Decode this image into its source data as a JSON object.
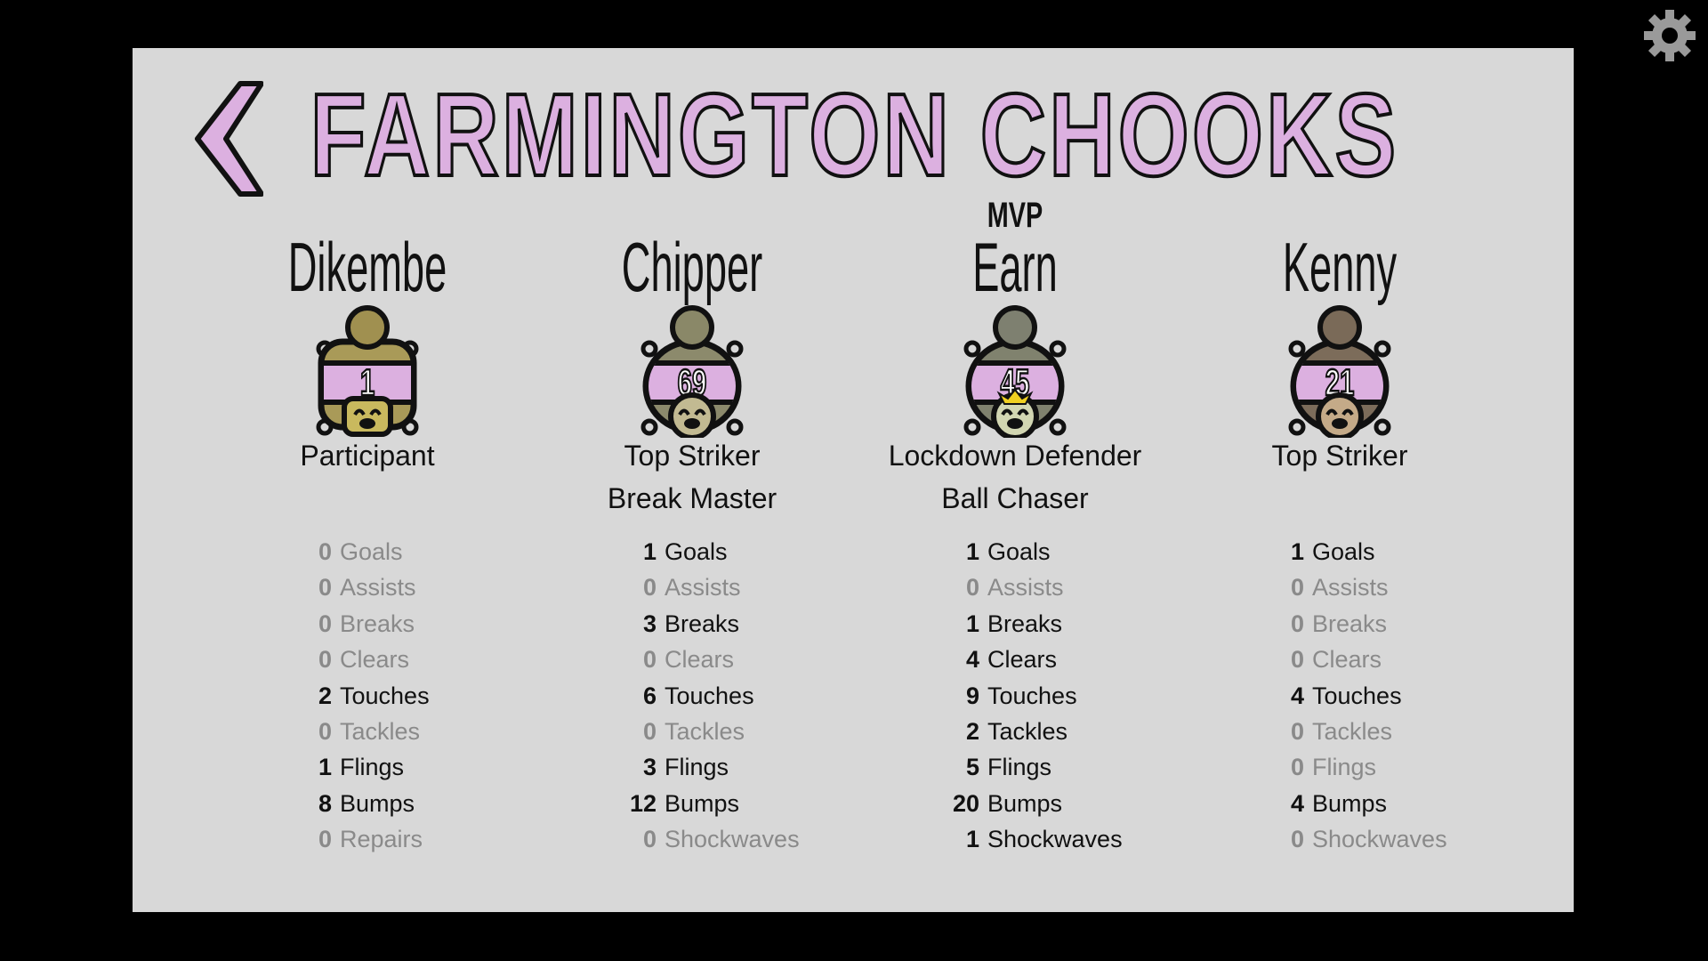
{
  "team_name": "FARMINGTON CHOOKS",
  "colors": {
    "background": "#000000",
    "panel": "#d8d8d8",
    "team_accent": "#dcb0e0",
    "zero_stat": "#8a8a8a",
    "crown": "#f0d020"
  },
  "icons": {
    "back": "chevron-left-icon",
    "settings": "gear-icon"
  },
  "players": [
    {
      "name": "Dikembe",
      "number": "1",
      "mvp": "",
      "awards": [
        "Participant"
      ],
      "shape": "square",
      "body_color": "#a99a58",
      "head_color": "#a09050",
      "face_color": "#c9b95e",
      "stats": [
        {
          "value": "0",
          "label": "Goals"
        },
        {
          "value": "0",
          "label": "Assists"
        },
        {
          "value": "0",
          "label": "Breaks"
        },
        {
          "value": "0",
          "label": "Clears"
        },
        {
          "value": "2",
          "label": "Touches"
        },
        {
          "value": "0",
          "label": "Tackles"
        },
        {
          "value": "1",
          "label": "Flings"
        },
        {
          "value": "8",
          "label": "Bumps"
        },
        {
          "value": "0",
          "label": "Repairs"
        }
      ]
    },
    {
      "name": "Chipper",
      "number": "69",
      "mvp": "",
      "awards": [
        "Top Striker",
        "Break Master"
      ],
      "shape": "round",
      "body_color": "#8c8a6c",
      "head_color": "#8a8868",
      "face_color": "#c2ba92",
      "stats": [
        {
          "value": "1",
          "label": "Goals"
        },
        {
          "value": "0",
          "label": "Assists"
        },
        {
          "value": "3",
          "label": "Breaks"
        },
        {
          "value": "0",
          "label": "Clears"
        },
        {
          "value": "6",
          "label": "Touches"
        },
        {
          "value": "0",
          "label": "Tackles"
        },
        {
          "value": "3",
          "label": "Flings"
        },
        {
          "value": "12",
          "label": "Bumps"
        },
        {
          "value": "0",
          "label": "Shockwaves"
        }
      ]
    },
    {
      "name": "Earn",
      "number": "45",
      "mvp": "MVP",
      "awards": [
        "Lockdown Defender",
        "Ball Chaser"
      ],
      "shape": "round",
      "body_color": "#80826e",
      "head_color": "#7e8070",
      "face_color": "#d2d6b2",
      "crown": true,
      "stats": [
        {
          "value": "1",
          "label": "Goals"
        },
        {
          "value": "0",
          "label": "Assists"
        },
        {
          "value": "1",
          "label": "Breaks"
        },
        {
          "value": "4",
          "label": "Clears"
        },
        {
          "value": "9",
          "label": "Touches"
        },
        {
          "value": "2",
          "label": "Tackles"
        },
        {
          "value": "5",
          "label": "Flings"
        },
        {
          "value": "20",
          "label": "Bumps"
        },
        {
          "value": "1",
          "label": "Shockwaves"
        }
      ]
    },
    {
      "name": "Kenny",
      "number": "21",
      "mvp": "",
      "awards": [
        "Top Striker"
      ],
      "shape": "round",
      "body_color": "#7c6c5a",
      "head_color": "#7a6a58",
      "face_color": "#c4aa88",
      "stats": [
        {
          "value": "1",
          "label": "Goals"
        },
        {
          "value": "0",
          "label": "Assists"
        },
        {
          "value": "0",
          "label": "Breaks"
        },
        {
          "value": "0",
          "label": "Clears"
        },
        {
          "value": "4",
          "label": "Touches"
        },
        {
          "value": "0",
          "label": "Tackles"
        },
        {
          "value": "0",
          "label": "Flings"
        },
        {
          "value": "4",
          "label": "Bumps"
        },
        {
          "value": "0",
          "label": "Shockwaves"
        }
      ]
    }
  ]
}
